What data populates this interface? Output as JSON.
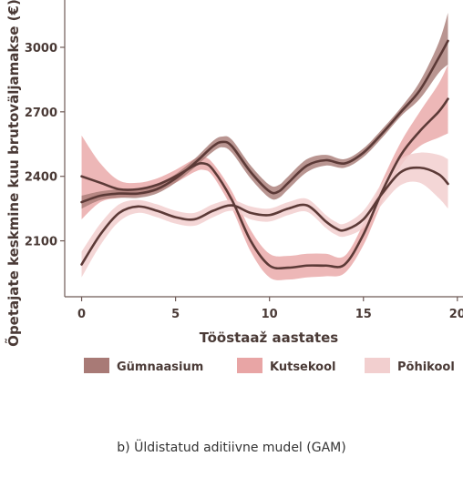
{
  "caption": "b) Üldistatud aditiivne mudel (GAM)",
  "chart_data": {
    "type": "line",
    "xlabel": "Tööstaaž aastates",
    "ylabel": "Õpetajate keskmine kuu brutoväljamakse (€)",
    "xlim": [
      -0.9,
      20.3
    ],
    "ylim": [
      1840,
      3220
    ],
    "x_ticks": [
      0,
      5,
      10,
      15,
      20
    ],
    "y_ticks": [
      2100,
      2400,
      2700,
      3000
    ],
    "legend_position": "bottom",
    "grid": false,
    "series": [
      {
        "name": "Gümnaasium",
        "color": "#5c3a37",
        "band_color": "#a87a76",
        "x": [
          0,
          1,
          2,
          3,
          4,
          5,
          6,
          7,
          7.5,
          8,
          9,
          10,
          10.5,
          11,
          12,
          13,
          14,
          15,
          16,
          17,
          18,
          19,
          19.5
        ],
        "y": [
          2280,
          2310,
          2320,
          2320,
          2340,
          2390,
          2460,
          2540,
          2560,
          2540,
          2420,
          2330,
          2330,
          2370,
          2450,
          2475,
          2460,
          2510,
          2600,
          2700,
          2800,
          2950,
          3030
        ],
        "lower": [
          2250,
          2290,
          2300,
          2300,
          2320,
          2370,
          2440,
          2515,
          2535,
          2510,
          2390,
          2300,
          2300,
          2340,
          2420,
          2450,
          2440,
          2490,
          2580,
          2680,
          2760,
          2880,
          2920
        ],
        "upper": [
          2310,
          2330,
          2340,
          2340,
          2360,
          2410,
          2480,
          2565,
          2585,
          2570,
          2450,
          2360,
          2360,
          2400,
          2480,
          2500,
          2480,
          2530,
          2620,
          2720,
          2840,
          3020,
          3160
        ]
      },
      {
        "name": "Kutsekool",
        "color": "#5c3a37",
        "band_color": "#e8a5a5",
        "x": [
          0,
          1,
          2,
          3,
          4,
          5,
          6,
          6.5,
          7,
          8,
          9,
          10,
          11,
          12,
          13,
          14,
          15,
          16,
          17,
          18,
          19,
          19.5
        ],
        "y": [
          2400,
          2370,
          2340,
          2340,
          2360,
          2400,
          2450,
          2460,
          2430,
          2290,
          2100,
          1985,
          1975,
          1985,
          1985,
          1990,
          2130,
          2330,
          2500,
          2610,
          2700,
          2760
        ],
        "lower": [
          2200,
          2280,
          2300,
          2310,
          2330,
          2370,
          2420,
          2430,
          2400,
          2250,
          2050,
          1930,
          1920,
          1930,
          1935,
          1950,
          2080,
          2280,
          2450,
          2540,
          2580,
          2600
        ],
        "upper": [
          2590,
          2460,
          2380,
          2370,
          2390,
          2430,
          2480,
          2490,
          2460,
          2330,
          2150,
          2040,
          2030,
          2040,
          2040,
          2030,
          2180,
          2380,
          2560,
          2700,
          2830,
          2920
        ]
      },
      {
        "name": "Põhikool",
        "color": "#5c3a37",
        "band_color": "#f2cfcf",
        "x": [
          0,
          1,
          2,
          3,
          4,
          5,
          6,
          7,
          8,
          9,
          10,
          11,
          12,
          13,
          13.5,
          14,
          15,
          16,
          17,
          18,
          19,
          19.5
        ],
        "y": [
          1990,
          2130,
          2230,
          2260,
          2240,
          2210,
          2200,
          2240,
          2265,
          2230,
          2220,
          2250,
          2265,
          2190,
          2160,
          2150,
          2200,
          2320,
          2420,
          2440,
          2410,
          2365
        ],
        "lower": [
          1930,
          2080,
          2190,
          2230,
          2210,
          2180,
          2170,
          2210,
          2240,
          2200,
          2190,
          2220,
          2235,
          2160,
          2130,
          2120,
          2160,
          2270,
          2360,
          2370,
          2300,
          2250
        ],
        "upper": [
          2050,
          2180,
          2270,
          2290,
          2270,
          2240,
          2230,
          2270,
          2290,
          2260,
          2250,
          2280,
          2295,
          2220,
          2190,
          2180,
          2240,
          2370,
          2480,
          2510,
          2500,
          2480
        ]
      }
    ]
  }
}
